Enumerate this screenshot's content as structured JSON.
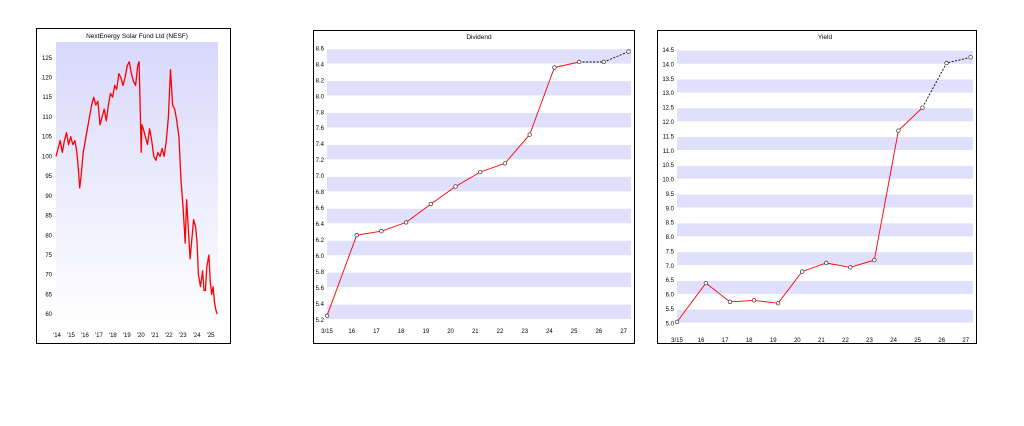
{
  "colors": {
    "line": "#ff0000",
    "band": "#e0e0fc",
    "frame": "#000000",
    "forecast_line": "#000000"
  },
  "chart_data": [
    {
      "type": "line",
      "title": "NextEnergy Solar Fund Ltd (NESF)",
      "xlabel": "",
      "ylabel": "",
      "x_ticks": [
        "'14",
        "'15",
        "'16",
        "'17",
        "'18",
        "'19",
        "'20",
        "'21",
        "'22",
        "'23",
        "'24",
        "'25"
      ],
      "x_range": [
        2014.0,
        2025.6
      ],
      "y_ticks": [
        60,
        65,
        70,
        75,
        80,
        85,
        90,
        95,
        100,
        105,
        110,
        115,
        120,
        125
      ],
      "ylim": [
        57,
        129
      ],
      "background": "vertical-gradient",
      "series": [
        {
          "x": [
            2014.0,
            2014.15,
            2014.3,
            2014.45,
            2014.6,
            2014.75,
            2014.9,
            2015.05,
            2015.2,
            2015.35,
            2015.5,
            2015.62,
            2015.7,
            2015.8,
            2015.95,
            2016.1,
            2016.25,
            2016.4,
            2016.55,
            2016.7,
            2016.85,
            2017.0,
            2017.15,
            2017.3,
            2017.45,
            2017.6,
            2017.75,
            2017.9,
            2018.05,
            2018.2,
            2018.35,
            2018.5,
            2018.65,
            2018.8,
            2018.95,
            2019.1,
            2019.25,
            2019.4,
            2019.55,
            2019.7,
            2019.85,
            2019.95,
            2020.1,
            2020.15,
            2020.25,
            2020.4,
            2020.55,
            2020.7,
            2020.85,
            2021.0,
            2021.15,
            2021.3,
            2021.45,
            2021.6,
            2021.75,
            2021.9,
            2022.05,
            2022.2,
            2022.35,
            2022.5,
            2022.65,
            2022.8,
            2022.95,
            2023.1,
            2023.25,
            2023.35,
            2023.5,
            2023.6,
            2023.7,
            2023.85,
            2024.0,
            2024.1,
            2024.2,
            2024.35,
            2024.5,
            2024.6,
            2024.7,
            2024.8,
            2024.95,
            2025.05,
            2025.15,
            2025.25,
            2025.35,
            2025.45,
            2025.55
          ],
          "y": [
            100,
            102,
            104,
            101,
            104,
            106,
            103,
            105,
            103,
            104,
            101,
            96,
            92,
            95,
            101,
            104,
            107,
            110,
            113,
            115,
            113,
            114,
            108,
            110,
            112,
            109,
            113,
            116,
            115,
            118,
            117,
            121,
            120,
            118,
            120,
            123,
            124,
            121,
            119,
            118,
            123,
            124,
            101,
            108,
            107,
            105,
            103,
            107,
            104,
            100,
            99,
            101,
            100,
            102,
            100,
            104,
            110,
            122,
            113,
            112,
            109,
            105,
            94,
            87,
            78,
            89,
            80,
            74,
            78,
            84,
            82,
            78,
            70,
            67,
            71,
            66,
            66,
            72,
            75,
            68,
            65,
            67,
            63,
            61,
            60
          ]
        }
      ]
    },
    {
      "type": "line",
      "title": "Dividend",
      "xlabel": "",
      "ylabel": "",
      "x_ticks": [
        "3/15",
        "16",
        "17",
        "18",
        "19",
        "20",
        "21",
        "22",
        "23",
        "24",
        "25",
        "26",
        "27"
      ],
      "y_ticks": [
        5.2,
        5.4,
        5.6,
        5.8,
        6.0,
        6.2,
        6.4,
        6.6,
        6.8,
        7.0,
        7.2,
        7.4,
        7.6,
        7.8,
        8.0,
        8.2,
        8.4,
        8.6
      ],
      "y_tick_labels": [
        "5.2",
        "5.4",
        "5.6",
        "5.8",
        "6.0",
        "6.2",
        "6.4",
        "6.6",
        "6.8",
        "7.0",
        "7.2",
        "7.4",
        "7.6",
        "7.8",
        "8.0",
        "8.2",
        "8.4",
        "8.6"
      ],
      "ylim": [
        5.16,
        8.68
      ],
      "x_range": [
        0,
        12.3
      ],
      "grid": "alternating horizontal bands",
      "series": [
        {
          "style": "solid",
          "x": [
            0,
            1.2,
            2.2,
            3.2,
            4.2,
            5.2,
            6.2,
            7.2,
            8.2,
            9.2,
            10.2
          ],
          "y": [
            5.25,
            6.26,
            6.31,
            6.42,
            6.65,
            6.87,
            7.05,
            7.16,
            7.52,
            8.36,
            8.43
          ]
        },
        {
          "style": "dashed",
          "x": [
            10.2,
            11.2,
            12.2
          ],
          "y": [
            8.43,
            8.43,
            8.56
          ]
        }
      ]
    },
    {
      "type": "line",
      "title": "Yield",
      "xlabel": "",
      "ylabel": "",
      "x_ticks": [
        "3/15",
        "16",
        "17",
        "18",
        "19",
        "20",
        "21",
        "22",
        "23",
        "24",
        "25",
        "26",
        "27"
      ],
      "y_ticks": [
        5.0,
        5.5,
        6.0,
        6.5,
        7.0,
        7.5,
        8.0,
        8.5,
        9.0,
        9.5,
        10.0,
        10.5,
        11.0,
        11.5,
        12.0,
        12.5,
        13.0,
        13.5,
        14.0,
        14.5
      ],
      "y_tick_labels": [
        "5.0",
        "5.5",
        "6.0",
        "6.5",
        "7.0",
        "7.5",
        "8.0",
        "8.5",
        "9.0",
        "9.5",
        "10.0",
        "10.5",
        "11.0",
        "11.5",
        "12.0",
        "12.5",
        "13.0",
        "13.5",
        "14.0",
        "14.5"
      ],
      "ylim": [
        4.7,
        14.85
      ],
      "x_range": [
        0,
        12.3
      ],
      "grid": "alternating horizontal bands",
      "series": [
        {
          "style": "solid",
          "x": [
            0,
            1.2,
            2.2,
            3.2,
            4.2,
            5.2,
            6.2,
            7.2,
            8.2,
            9.2,
            10.2
          ],
          "y": [
            5.05,
            6.4,
            5.75,
            5.8,
            5.7,
            6.8,
            7.1,
            6.95,
            7.2,
            11.7,
            12.5
          ]
        },
        {
          "style": "dashed",
          "x": [
            10.2,
            11.2,
            12.2
          ],
          "y": [
            12.5,
            14.05,
            14.25
          ]
        }
      ]
    }
  ]
}
